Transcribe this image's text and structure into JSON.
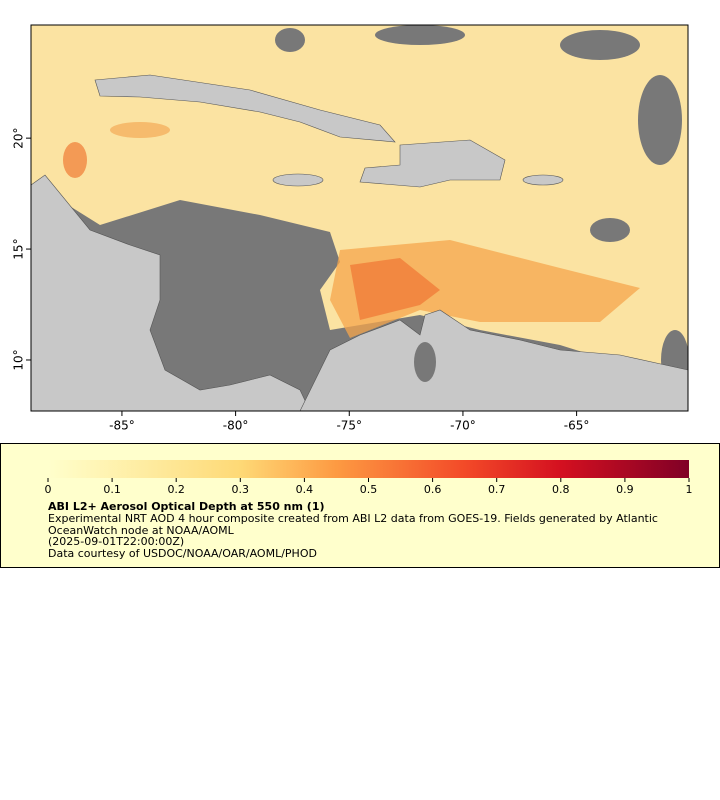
{
  "map": {
    "lonlim": [
      -89,
      -60.1
    ],
    "latlim": [
      7.7,
      25.1
    ],
    "lon_ticks": [
      {
        "value": -85,
        "label": "-85°"
      },
      {
        "value": -80,
        "label": "-80°"
      },
      {
        "value": -75,
        "label": "-75°"
      },
      {
        "value": -70,
        "label": "-70°"
      },
      {
        "value": -65,
        "label": "-65°"
      }
    ],
    "lat_ticks": [
      {
        "value": 10,
        "label": "10°"
      },
      {
        "value": 15,
        "label": "15°"
      },
      {
        "value": 20,
        "label": "20°"
      }
    ]
  },
  "legend": {
    "colorbar_lim": [
      0,
      1
    ],
    "colorbar_ticks": [
      0,
      0.1,
      0.2,
      0.3,
      0.4,
      0.5,
      0.6,
      0.7,
      0.8,
      0.9,
      1
    ],
    "title": "ABI L2+ Aerosol Optical Depth at 550 nm (1)",
    "description": [
      "Experimental NRT AOD 4 hour composite created from ABI L2 data from GOES-19. Fields generated by Atlantic",
      "OceanWatch node at NOAA/AOML",
      "(2025-09-01T22:00:00Z)",
      "Data courtesy of USDOC/NOAA/OAR/AOML/PHOD"
    ]
  }
}
